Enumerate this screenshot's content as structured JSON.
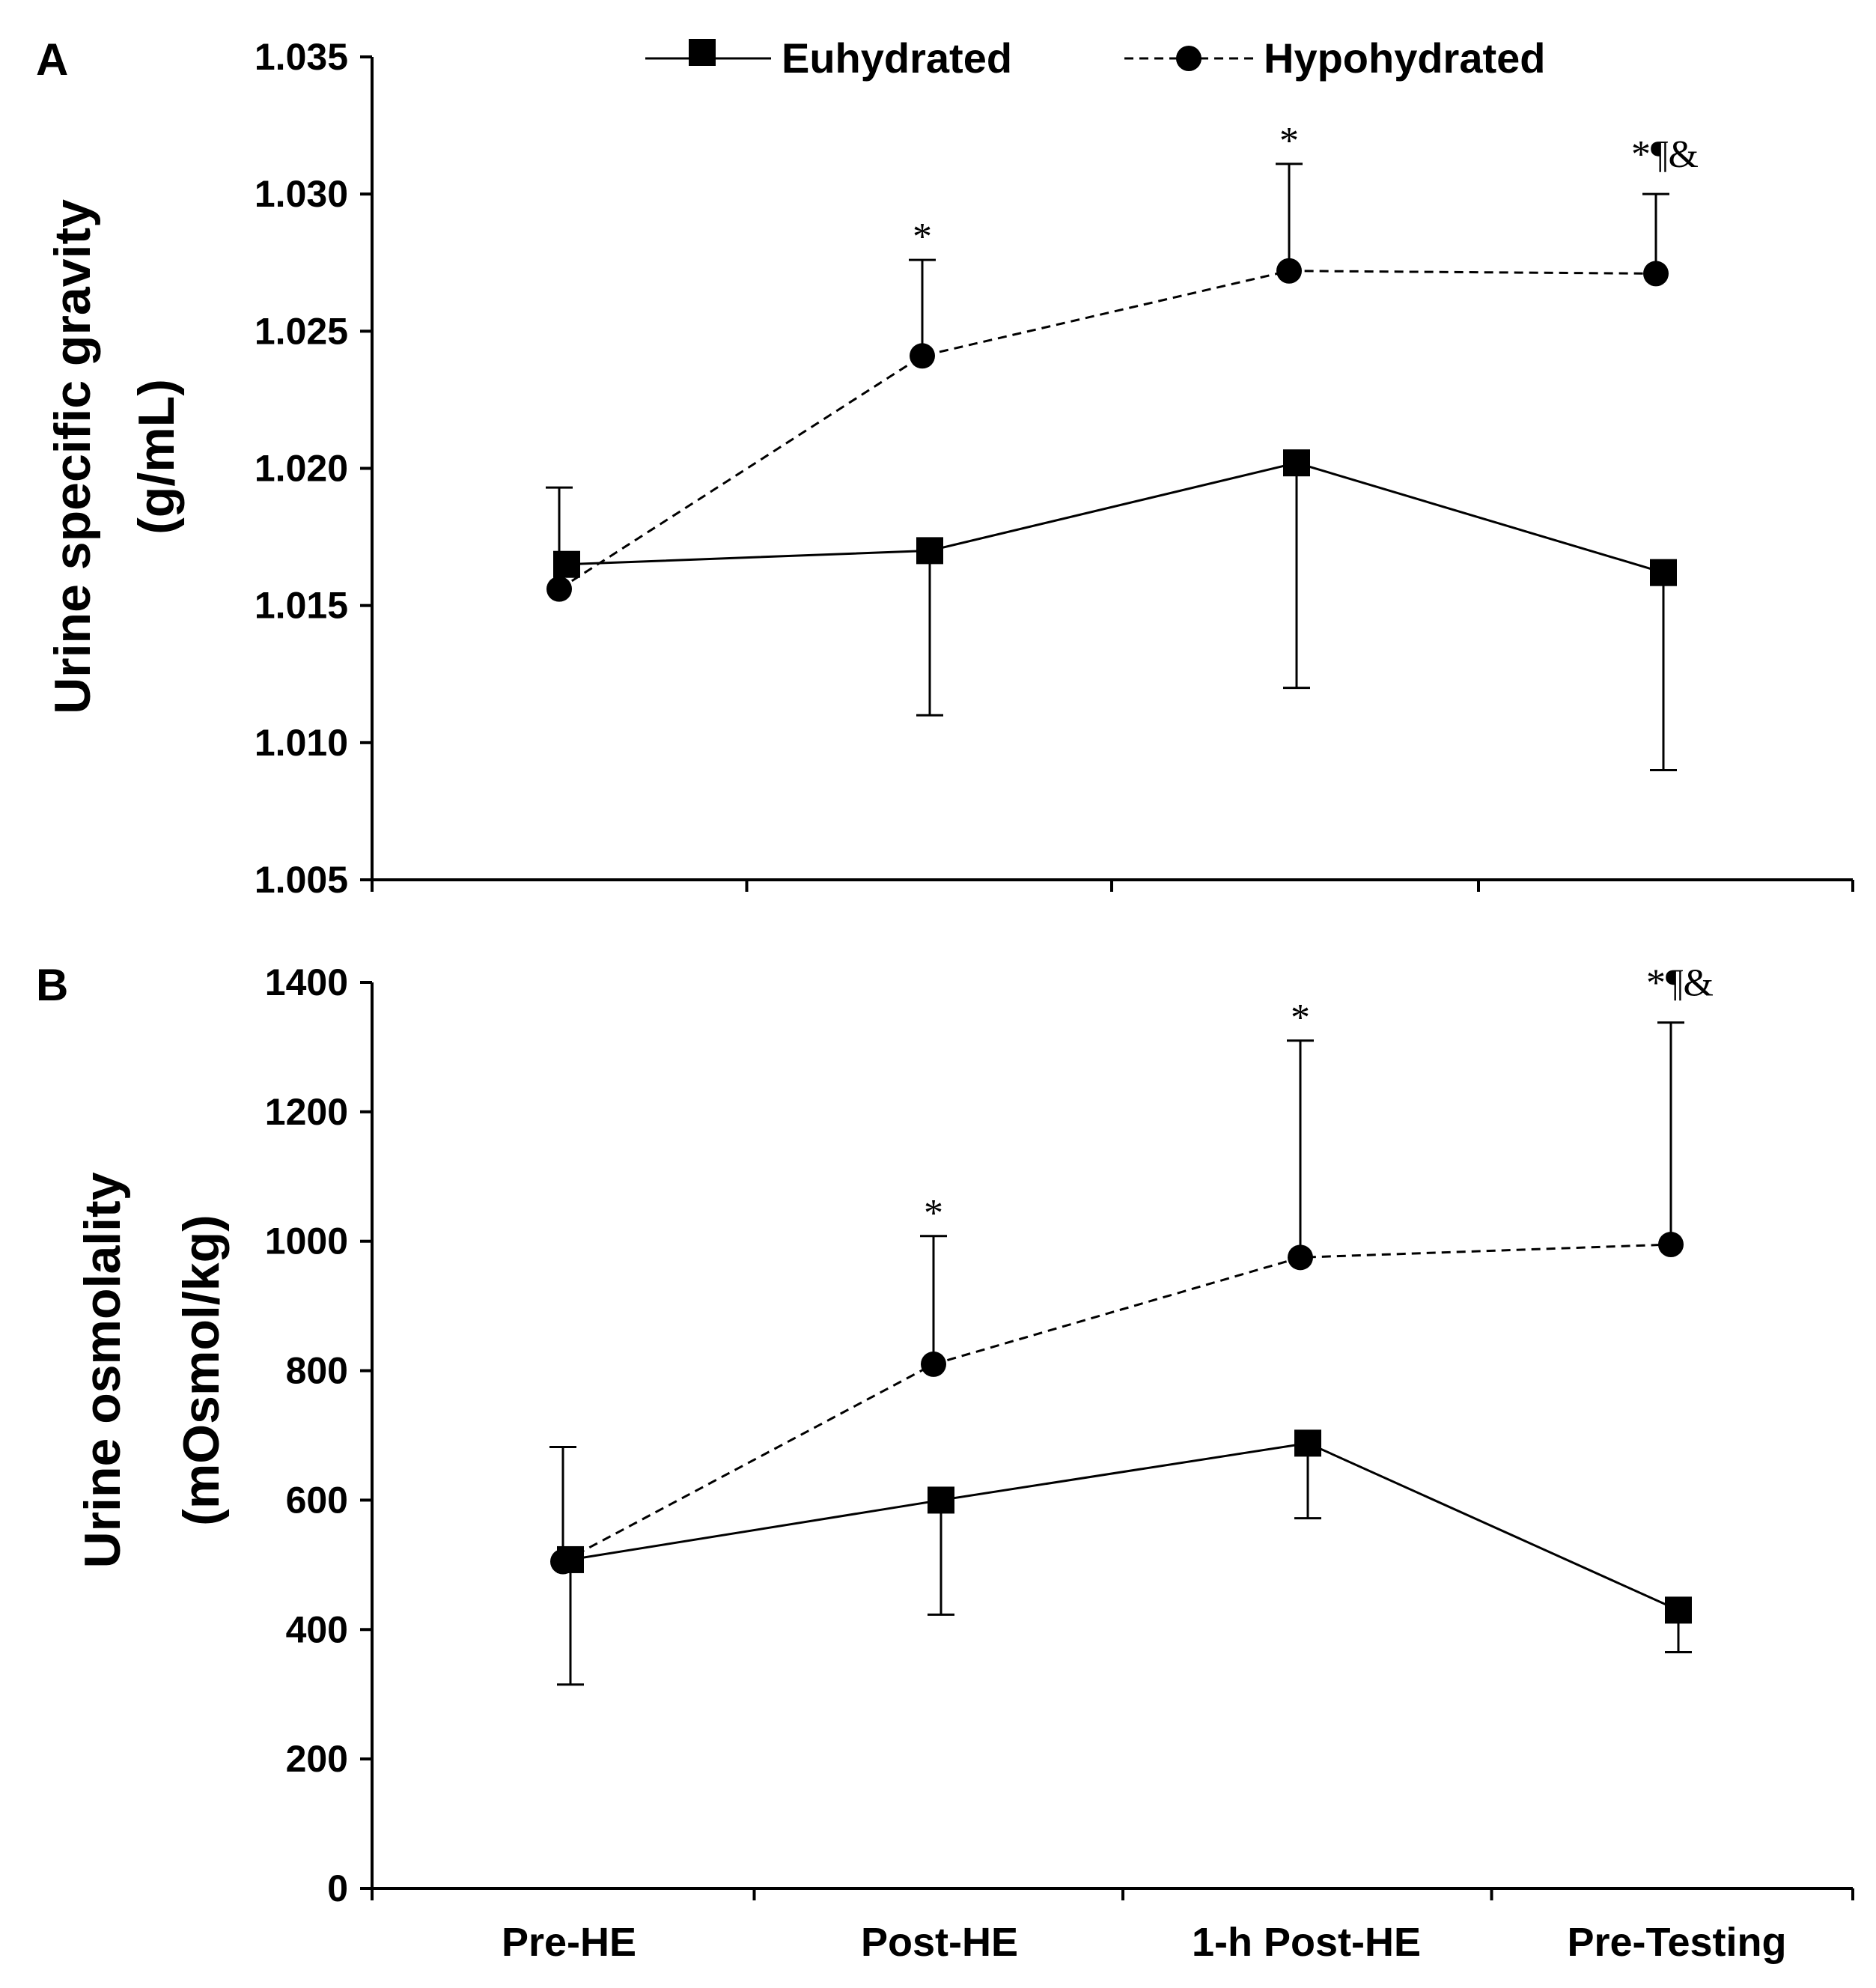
{
  "chart_data": [
    {
      "panel": "A",
      "type": "line",
      "categories": [
        "Pre-HE",
        "Post-HE",
        "1-h Post-HE",
        "Pre-Testing"
      ],
      "ylabel_lines": [
        "Urine specific gravity",
        "(g/mL)"
      ],
      "xlabel": "",
      "ylim": [
        1.005,
        1.035
      ],
      "yticks": [
        "1.005",
        "1.010",
        "1.015",
        "1.020",
        "1.025",
        "1.030",
        "1.035"
      ],
      "series": [
        {
          "name": "Euhydrated",
          "marker": "square",
          "line": "solid",
          "values": [
            1.0165,
            1.017,
            1.0202,
            1.0162
          ],
          "error_low": [
            null,
            1.011,
            1.012,
            1.009
          ],
          "error_high": [
            null,
            null,
            null,
            null
          ]
        },
        {
          "name": "Hypohydrated",
          "marker": "circle",
          "line": "dashed",
          "values": [
            1.0156,
            1.0241,
            1.0272,
            1.0271
          ],
          "error_low": [
            null,
            null,
            null,
            null
          ],
          "error_high": [
            1.0193,
            1.0276,
            1.0311,
            1.03
          ]
        }
      ],
      "annotations": [
        {
          "category": "Post-HE",
          "text": "*"
        },
        {
          "category": "1-h Post-HE",
          "text": "*"
        },
        {
          "category": "Pre-Testing",
          "text": "*¶&"
        }
      ]
    },
    {
      "panel": "B",
      "type": "line",
      "categories": [
        "Pre-HE",
        "Post-HE",
        "1-h Post-HE",
        "Pre-Testing"
      ],
      "ylabel_lines": [
        "Urine osmolality",
        "(mOsmol/kg)"
      ],
      "xlabel": "",
      "ylim": [
        0,
        1400
      ],
      "yticks": [
        "0",
        "200",
        "400",
        "600",
        "800",
        "1000",
        "1200",
        "1400"
      ],
      "series": [
        {
          "name": "Euhydrated",
          "marker": "square",
          "line": "solid",
          "values": [
            508,
            600,
            688,
            430
          ],
          "error_low": [
            315,
            423,
            572,
            365
          ],
          "error_high": [
            null,
            null,
            null,
            null
          ]
        },
        {
          "name": "Hypohydrated",
          "marker": "circle",
          "line": "dashed",
          "values": [
            505,
            810,
            975,
            995
          ],
          "error_low": [
            null,
            null,
            null,
            null
          ],
          "error_high": [
            682,
            1008,
            1310,
            1338
          ]
        }
      ],
      "annotations": [
        {
          "category": "Post-HE",
          "text": "*"
        },
        {
          "category": "1-h Post-HE",
          "text": "*"
        },
        {
          "category": "Pre-Testing",
          "text": "*¶&"
        }
      ]
    }
  ],
  "legend": {
    "items": [
      {
        "label": "Euhydrated",
        "marker": "square",
        "line": "solid"
      },
      {
        "label": "Hypohydrated",
        "marker": "circle",
        "line": "dashed"
      }
    ]
  }
}
